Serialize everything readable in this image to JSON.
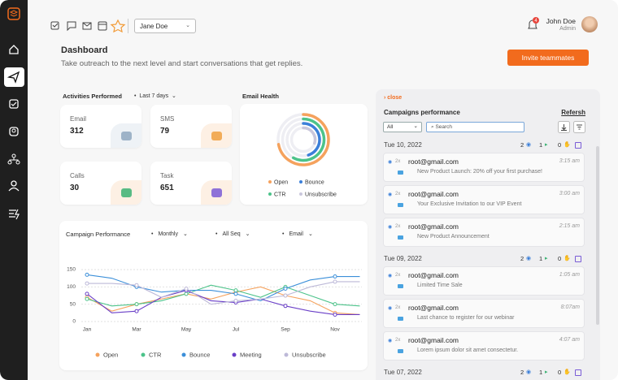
{
  "topbar": {
    "user_select": "Jane Doe",
    "notifications": 4,
    "user_name": "John Doe",
    "user_role": "Admin"
  },
  "header": {
    "title": "Dashboard",
    "subtitle": "Take outreach to the next level and start conversations that get replies.",
    "button": "Invite teammates"
  },
  "activities": {
    "title": "Activities Performed",
    "period": "Last 7 days",
    "cards": [
      {
        "label": "Email",
        "value": 312
      },
      {
        "label": "SMS",
        "value": 79
      },
      {
        "label": "Calls",
        "value": 30
      },
      {
        "label": "Task",
        "value": 651
      }
    ]
  },
  "email_health": {
    "title": "Email Health",
    "range": [
      0,
      100
    ],
    "series": [
      {
        "name": "Open",
        "color": "#f5a25d",
        "value": 72
      },
      {
        "name": "CTR",
        "color": "#4cc38a",
        "value": 58
      },
      {
        "name": "Bounce",
        "color": "#3b7fd9",
        "value": 45
      },
      {
        "name": "Unsubscribe",
        "color": "#c9c7dc",
        "value": 30
      }
    ]
  },
  "chart_filters": [
    "Monthly",
    "All Seq",
    "Email"
  ],
  "chart_data": {
    "type": "line",
    "title": "Campaign Performance",
    "categories": [
      "Jan",
      null,
      "Mar",
      null,
      "May",
      null,
      "Jul",
      null,
      "Sep",
      null,
      "Nov",
      null
    ],
    "series": [
      {
        "name": "Open",
        "color": "#f5a25d",
        "values": [
          70,
          30,
          50,
          65,
          80,
          65,
          85,
          100,
          75,
          60,
          25,
          20
        ]
      },
      {
        "name": "CTR",
        "color": "#4cc38a",
        "values": [
          65,
          45,
          50,
          60,
          80,
          105,
          90,
          70,
          100,
          75,
          50,
          45
        ]
      },
      {
        "name": "Bounce",
        "color": "#3b8fd9",
        "values": [
          135,
          125,
          100,
          85,
          90,
          90,
          80,
          60,
          95,
          120,
          130,
          130
        ]
      },
      {
        "name": "Meeting",
        "color": "#6a3fc7",
        "values": [
          80,
          25,
          30,
          70,
          90,
          60,
          55,
          65,
          45,
          30,
          20,
          20
        ]
      },
      {
        "name": "Unsubscribe",
        "color": "#bdb9d8",
        "values": [
          110,
          110,
          105,
          70,
          95,
          50,
          60,
          65,
          75,
          100,
          115,
          115
        ]
      }
    ],
    "ylim": [
      0,
      150
    ],
    "yticks": [
      0,
      50,
      100,
      150
    ],
    "grid": true
  },
  "campaigns": {
    "close": "close",
    "title": "Campaigns performance",
    "refresh": "Refersh",
    "filter": "All",
    "search_placeholder": "Search",
    "groups": [
      {
        "date": "Tue 10, 2022",
        "stats": [
          2,
          1,
          0
        ],
        "items": [
          {
            "count": "2x",
            "email": "root@gmail.com",
            "time": "3:15 am",
            "subject": "New Product Launch: 20% off your first purchase!"
          },
          {
            "count": "2x",
            "email": "root@gmail.com",
            "time": "3:00 am",
            "subject": "Your Exclusive Invitation to our VIP Event"
          },
          {
            "count": "2x",
            "email": "root@gmail.com",
            "time": "2:15 am",
            "subject": "New Product Announcement"
          }
        ]
      },
      {
        "date": "Tue 09, 2022",
        "stats": [
          2,
          1,
          0
        ],
        "items": [
          {
            "count": "2x",
            "email": "root@gmail.com",
            "time": "1:05 am",
            "subject": "Limited Time Sale"
          },
          {
            "count": "2x",
            "email": "root@gmail.com",
            "time": "8:07am",
            "subject": "Last chance to register for our webinar"
          },
          {
            "count": "2x",
            "email": "root@gmail.com",
            "time": "4:07 am",
            "subject": "Lorem ipsum dolor sit amet consectetur."
          }
        ]
      },
      {
        "date": "Tue 07, 2022",
        "stats": [
          2,
          1,
          0
        ],
        "items": []
      }
    ]
  }
}
